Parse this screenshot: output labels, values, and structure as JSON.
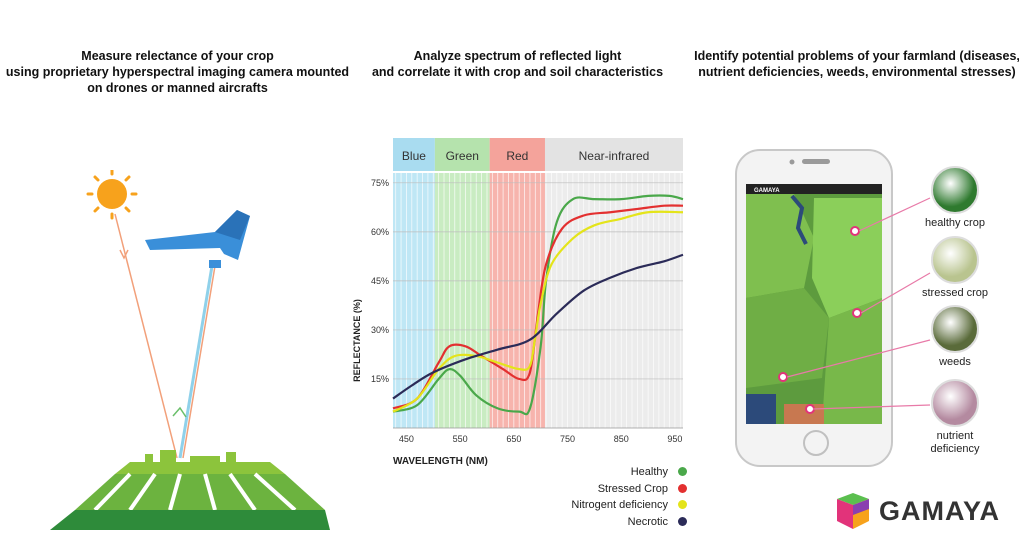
{
  "captions": {
    "measure": [
      "Measure relectance of your crop",
      "using proprietary hyperspectral imaging camera mounted",
      "on drones or manned aircrafts"
    ],
    "analyze": [
      "Analyze spectrum of reflected light",
      "and correlate it with crop and soil characteristics"
    ],
    "identify": [
      "Identify potential problems of your farmland (diseases,",
      "nutrient deficiencies, weeds, environmental stresses)"
    ]
  },
  "chart_data": {
    "type": "line",
    "bands": [
      {
        "name": "Blue",
        "range": [
          425,
          503
        ],
        "color": "#bfe7f5",
        "header_color": "#a9dcf0"
      },
      {
        "name": "Green",
        "range": [
          503,
          605
        ],
        "color": "#c9ecc2",
        "header_color": "#b5e3ad"
      },
      {
        "name": "Red",
        "range": [
          605,
          708
        ],
        "color": "#f7b4ad",
        "header_color": "#f4a39b"
      },
      {
        "name": "Near-infrared",
        "range": [
          708,
          965
        ],
        "color": "#ececec",
        "header_color": "#e3e3e3"
      }
    ],
    "xlabel": "WAVELENGTH (NM)",
    "ylabel": "REFLECTANCE (%)",
    "xlim": [
      425,
      965
    ],
    "ylim": [
      0,
      78
    ],
    "xticks": [
      "450",
      "550",
      "650",
      "750",
      "850",
      "950"
    ],
    "yticks": [
      "15%",
      "30%",
      "45%",
      "60%",
      "75%"
    ],
    "series": [
      {
        "name": "Healthy",
        "color": "#4aa84a",
        "x": [
          425,
          470,
          510,
          530,
          550,
          580,
          620,
          660,
          680,
          700,
          710,
          730,
          760,
          800,
          850,
          900,
          940,
          965
        ],
        "y": [
          5,
          7,
          15,
          18,
          16,
          10,
          6,
          5,
          6,
          25,
          45,
          63,
          70,
          70,
          70,
          71,
          71,
          70
        ]
      },
      {
        "name": "Stressed Crop",
        "color": "#e33030",
        "x": [
          425,
          470,
          510,
          530,
          560,
          590,
          630,
          660,
          680,
          695,
          710,
          740,
          780,
          830,
          880,
          930,
          965
        ],
        "y": [
          6,
          9,
          20,
          25,
          25,
          22,
          18,
          15,
          17,
          35,
          50,
          61,
          65,
          66,
          67,
          68,
          68
        ]
      },
      {
        "name": "Nitrogent deficiency",
        "color": "#e4e41a",
        "x": [
          425,
          470,
          510,
          540,
          580,
          620,
          660,
          680,
          690,
          700,
          720,
          760,
          800,
          850,
          900,
          965
        ],
        "y": [
          5,
          9,
          18,
          22,
          22,
          20,
          18,
          19,
          28,
          38,
          50,
          58,
          62,
          64,
          66,
          66
        ]
      },
      {
        "name": "Necrotic",
        "color": "#2b2b58",
        "x": [
          425,
          460,
          500,
          560,
          620,
          680,
          730,
          780,
          830,
          880,
          930,
          965
        ],
        "y": [
          9,
          13,
          17,
          21,
          24,
          27,
          35,
          42,
          46,
          49,
          51,
          53
        ]
      }
    ]
  },
  "annotations": [
    {
      "label": "healthy crop",
      "color": "#2f7a2f"
    },
    {
      "label": "stressed crop",
      "color": "#b9c48f"
    },
    {
      "label": "weeds",
      "color": "#5a6b3a"
    },
    {
      "label": "nutrient deficiency",
      "color": "#b48aa0"
    }
  ],
  "phone": {
    "brand": "GAMAYA"
  },
  "logo": {
    "text": "GAMAYA"
  }
}
